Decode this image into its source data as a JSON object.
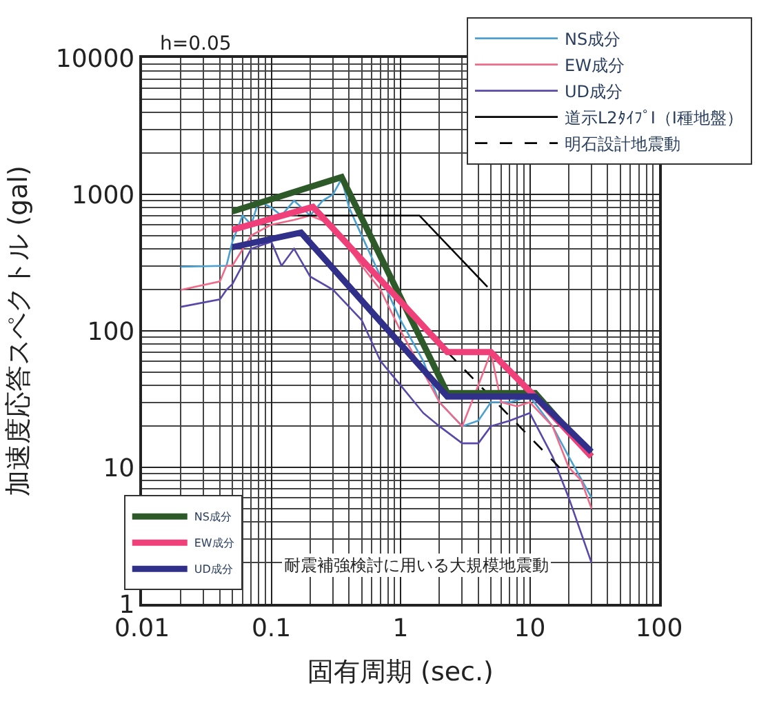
{
  "chart_data": {
    "type": "line",
    "xlabel": "固有周期 (sec.)",
    "ylabel": "加速度応答スペクトル (gal)",
    "annotations": [
      "h=0.05",
      "耐震補強検討に用いる大規模地震動"
    ],
    "log": "xy",
    "grid": true,
    "legend": "top right",
    "line_style": "solid",
    "marker": "none",
    "xlim": [
      0.01,
      100
    ],
    "xticks": [
      0.01,
      0.1,
      1,
      10,
      100
    ],
    "ylim": [
      1,
      10000
    ],
    "yticks": [
      1,
      10,
      100,
      1000,
      10000
    ],
    "series": [
      {
        "name": "NS成分",
        "color": "#4aa0d0",
        "x": [
          0.02,
          0.045,
          0.05,
          0.06,
          0.07,
          0.08,
          0.1,
          0.12,
          0.15,
          0.2,
          0.25,
          0.3,
          0.35,
          0.4,
          0.5,
          0.7,
          1,
          1.5,
          2,
          3,
          4,
          5,
          7,
          10,
          15,
          20,
          30
        ],
        "values": [
          295,
          300,
          450,
          700,
          600,
          900,
          800,
          700,
          900,
          700,
          900,
          1000,
          1300,
          800,
          500,
          250,
          120,
          60,
          30,
          20,
          22,
          30,
          30,
          33,
          20,
          12,
          6
        ]
      },
      {
        "name": "EW成分",
        "color": "#f06a8a",
        "x": [
          0.02,
          0.04,
          0.045,
          0.05,
          0.07,
          0.1,
          0.15,
          0.2,
          0.3,
          0.5,
          0.7,
          1,
          1.5,
          2,
          3,
          4,
          5,
          6,
          8,
          10,
          15,
          20,
          25,
          30
        ],
        "values": [
          200,
          230,
          300,
          300,
          500,
          600,
          650,
          700,
          600,
          300,
          200,
          100,
          50,
          30,
          20,
          40,
          70,
          30,
          28,
          30,
          20,
          10,
          8,
          5
        ]
      },
      {
        "name": "UD成分",
        "color": "#5a48a8",
        "x": [
          0.02,
          0.04,
          0.045,
          0.05,
          0.07,
          0.1,
          0.12,
          0.15,
          0.2,
          0.3,
          0.5,
          0.7,
          1,
          1.5,
          2,
          3,
          4,
          5,
          7,
          10,
          15,
          20,
          30
        ],
        "values": [
          150,
          170,
          200,
          220,
          400,
          450,
          300,
          400,
          250,
          200,
          120,
          60,
          40,
          25,
          20,
          15,
          15,
          20,
          22,
          25,
          12,
          6,
          2
        ]
      },
      {
        "name": "道示L2ﾀｲﾌﾟⅠ（Ⅰ種地盤）",
        "color": "#000000",
        "x": [
          0.16,
          1.4,
          4.7
        ],
        "values": [
          700,
          700,
          210
        ]
      },
      {
        "name": "明石設計地震動",
        "color": "#000000",
        "line_style": "dashed",
        "x": [
          2.3,
          18
        ],
        "values": [
          70,
          9.4
        ]
      },
      {
        "name": "NS成分",
        "color": "#2e5a2a",
        "x": [
          0.05,
          0.35,
          2.3,
          11,
          30
        ],
        "values": [
          750,
          1340,
          35,
          35,
          12
        ]
      },
      {
        "name": "EW成分",
        "color": "#f0407a",
        "x": [
          0.05,
          0.21,
          2.3,
          5,
          11,
          30
        ],
        "values": [
          550,
          810,
          70,
          70,
          33,
          12
        ]
      },
      {
        "name": "UD成分",
        "color": "#30308a",
        "x": [
          0.05,
          0.17,
          2.3,
          11,
          30
        ],
        "values": [
          410,
          525,
          33,
          33,
          13
        ]
      }
    ]
  }
}
